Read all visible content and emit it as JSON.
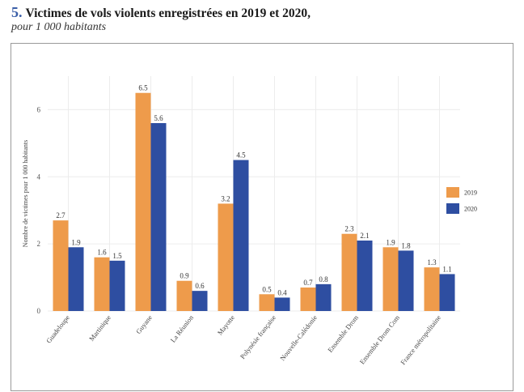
{
  "header": {
    "number": "5.",
    "title": "Victimes de vols violents enregistrées en 2019 et 2020,",
    "subtitle": "pour 1 000 habitants"
  },
  "chart_data": {
    "type": "bar",
    "title": "",
    "xlabel": "",
    "ylabel": "Nombre de victimes pour 1 000 habitants",
    "ylim": [
      0,
      7
    ],
    "yticks": [
      0,
      2,
      4,
      6
    ],
    "grid": true,
    "legend_position": "right",
    "categories": [
      "Guadeloupe",
      "Martinique",
      "Guyane",
      "La Réunion",
      "Mayotte",
      "Polynésie française",
      "Nouvelle-Calédonie",
      "Ensemble Drom",
      "Ensemble Drom Com",
      "France métropolitaine"
    ],
    "series": [
      {
        "name": "2019",
        "color": "#ee9b4b",
        "values": [
          2.7,
          1.6,
          6.5,
          0.9,
          3.2,
          0.5,
          0.7,
          2.3,
          1.9,
          1.3
        ],
        "labels": [
          "2.7",
          "1.6",
          "6.5",
          "0.9",
          "3.2",
          "0.5",
          "0.7",
          "2.3",
          "1.9",
          "1.3"
        ]
      },
      {
        "name": "2020",
        "color": "#2e4ea1",
        "values": [
          1.9,
          1.5,
          5.6,
          0.6,
          4.5,
          0.4,
          0.8,
          2.1,
          1.8,
          1.1
        ],
        "labels": [
          "1.9",
          "1.5",
          "5.6",
          "0.6",
          "4.5",
          "0.4",
          "0.8",
          "2.1",
          "1.8",
          "1.1"
        ]
      }
    ]
  }
}
